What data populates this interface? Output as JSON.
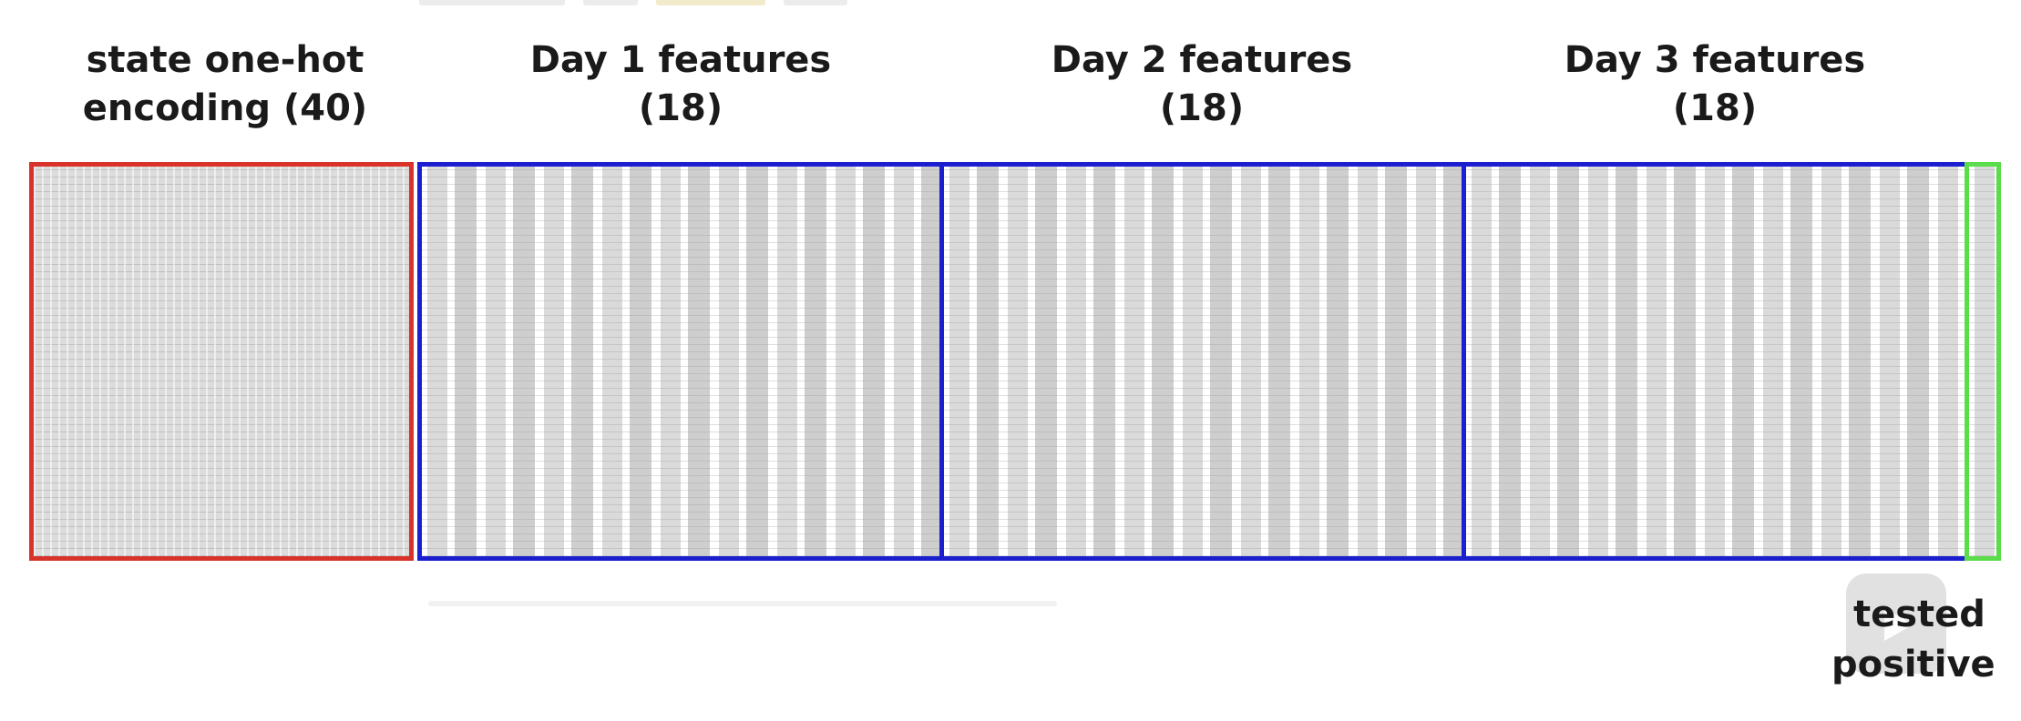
{
  "labels": {
    "state": {
      "line1": "state one-hot",
      "line2": "encoding (40)"
    },
    "day1": {
      "line1": "Day 1 features",
      "line2": "(18)"
    },
    "day2": {
      "line1": "Day 2 features",
      "line2": "(18)"
    },
    "day3": {
      "line1": "Day 3 features",
      "line2": "(18)"
    },
    "target": {
      "line1": "tested",
      "line2": "positive"
    }
  },
  "colors": {
    "state_border": "#d9322a",
    "day_border": "#1c1fcf",
    "target_border": "#5bdc4a"
  },
  "icons": {
    "watermark": "play-icon"
  }
}
